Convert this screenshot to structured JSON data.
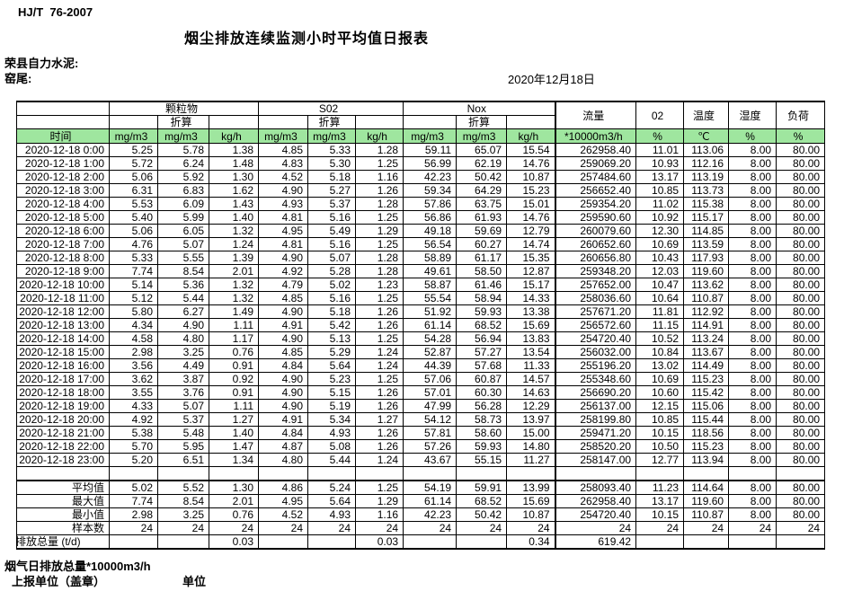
{
  "meta": {
    "standard": "HJ/T  76-2007",
    "title": "烟尘排放连续监测小时平均值日报表",
    "company": "荣县自力水泥:",
    "site": "窑尾:",
    "date": "2020年12月18日"
  },
  "table": {
    "time_header": "时间",
    "groups": [
      "颗粒物",
      "S02",
      "Nox"
    ],
    "converted_label": "折算",
    "tail_headers": [
      "流量",
      "02",
      "温度",
      "湿度",
      "负荷"
    ],
    "units": [
      "mg/m3",
      "mg/m3",
      "kg/h",
      "mg/m3",
      "mg/m3",
      "kg/h",
      "mg/m3",
      "mg/m3",
      "kg/h",
      "*10000m3/h",
      "%",
      "℃",
      "%",
      "%"
    ],
    "rows": [
      {
        "time": "2020-12-18 0:00",
        "values": [
          "5.25",
          "5.78",
          "1.38",
          "4.85",
          "5.33",
          "1.28",
          "59.11",
          "65.07",
          "15.54",
          "262958.40",
          "11.01",
          "113.06",
          "8.00",
          "80.00"
        ]
      },
      {
        "time": "2020-12-18 1:00",
        "values": [
          "5.72",
          "6.24",
          "1.48",
          "4.83",
          "5.30",
          "1.25",
          "56.99",
          "62.19",
          "14.76",
          "259069.20",
          "10.93",
          "112.16",
          "8.00",
          "80.00"
        ]
      },
      {
        "time": "2020-12-18 2:00",
        "values": [
          "5.06",
          "5.92",
          "1.30",
          "4.52",
          "5.18",
          "1.16",
          "42.23",
          "50.42",
          "10.87",
          "257484.60",
          "13.17",
          "113.19",
          "8.00",
          "80.00"
        ]
      },
      {
        "time": "2020-12-18 3:00",
        "values": [
          "6.31",
          "6.83",
          "1.62",
          "4.90",
          "5.27",
          "1.26",
          "59.34",
          "64.29",
          "15.23",
          "256652.40",
          "10.85",
          "113.73",
          "8.00",
          "80.00"
        ]
      },
      {
        "time": "2020-12-18 4:00",
        "values": [
          "5.53",
          "6.09",
          "1.43",
          "4.93",
          "5.37",
          "1.28",
          "57.86",
          "63.75",
          "15.01",
          "259354.20",
          "11.02",
          "115.38",
          "8.00",
          "80.00"
        ]
      },
      {
        "time": "2020-12-18 5:00",
        "values": [
          "5.40",
          "5.99",
          "1.40",
          "4.81",
          "5.16",
          "1.25",
          "56.86",
          "61.93",
          "14.76",
          "259590.60",
          "10.92",
          "115.17",
          "8.00",
          "80.00"
        ]
      },
      {
        "time": "2020-12-18 6:00",
        "values": [
          "5.06",
          "6.05",
          "1.32",
          "4.95",
          "5.49",
          "1.29",
          "49.18",
          "59.69",
          "12.79",
          "260079.60",
          "12.30",
          "114.85",
          "8.00",
          "80.00"
        ]
      },
      {
        "time": "2020-12-18 7:00",
        "values": [
          "4.76",
          "5.07",
          "1.24",
          "4.81",
          "5.16",
          "1.25",
          "56.54",
          "60.27",
          "14.74",
          "260652.60",
          "10.69",
          "113.59",
          "8.00",
          "80.00"
        ]
      },
      {
        "time": "2020-12-18 8:00",
        "values": [
          "5.33",
          "5.55",
          "1.39",
          "4.90",
          "5.07",
          "1.28",
          "58.89",
          "61.17",
          "15.35",
          "260656.80",
          "10.43",
          "117.93",
          "8.00",
          "80.00"
        ]
      },
      {
        "time": "2020-12-18 9:00",
        "values": [
          "7.74",
          "8.54",
          "2.01",
          "4.92",
          "5.28",
          "1.28",
          "49.61",
          "58.50",
          "12.87",
          "259348.20",
          "12.03",
          "119.60",
          "8.00",
          "80.00"
        ]
      },
      {
        "time": "2020-12-18 10:00",
        "values": [
          "5.14",
          "5.36",
          "1.32",
          "4.79",
          "5.02",
          "1.23",
          "58.87",
          "61.46",
          "15.17",
          "257652.00",
          "10.47",
          "113.62",
          "8.00",
          "80.00"
        ]
      },
      {
        "time": "2020-12-18 11:00",
        "values": [
          "5.12",
          "5.44",
          "1.32",
          "4.85",
          "5.16",
          "1.25",
          "55.54",
          "58.94",
          "14.33",
          "258036.60",
          "10.64",
          "110.87",
          "8.00",
          "80.00"
        ]
      },
      {
        "time": "2020-12-18 12:00",
        "values": [
          "5.80",
          "6.27",
          "1.49",
          "4.90",
          "5.18",
          "1.26",
          "51.92",
          "59.93",
          "13.38",
          "257671.20",
          "11.81",
          "112.92",
          "8.00",
          "80.00"
        ]
      },
      {
        "time": "2020-12-18 13:00",
        "values": [
          "4.34",
          "4.90",
          "1.11",
          "4.91",
          "5.42",
          "1.26",
          "61.14",
          "68.52",
          "15.69",
          "256572.60",
          "11.15",
          "114.91",
          "8.00",
          "80.00"
        ]
      },
      {
        "time": "2020-12-18 14:00",
        "values": [
          "4.58",
          "4.80",
          "1.17",
          "4.90",
          "5.13",
          "1.25",
          "54.28",
          "56.94",
          "13.83",
          "254720.40",
          "10.52",
          "113.24",
          "8.00",
          "80.00"
        ]
      },
      {
        "time": "2020-12-18 15:00",
        "values": [
          "2.98",
          "3.25",
          "0.76",
          "4.85",
          "5.29",
          "1.24",
          "52.87",
          "57.27",
          "13.54",
          "256032.00",
          "10.84",
          "113.67",
          "8.00",
          "80.00"
        ]
      },
      {
        "time": "2020-12-18 16:00",
        "values": [
          "3.56",
          "4.49",
          "0.91",
          "4.84",
          "5.64",
          "1.24",
          "44.39",
          "57.68",
          "11.33",
          "255196.20",
          "13.02",
          "114.49",
          "8.00",
          "80.00"
        ]
      },
      {
        "time": "2020-12-18 17:00",
        "values": [
          "3.62",
          "3.87",
          "0.92",
          "4.90",
          "5.23",
          "1.25",
          "57.06",
          "60.87",
          "14.57",
          "255348.60",
          "10.69",
          "115.23",
          "8.00",
          "80.00"
        ]
      },
      {
        "time": "2020-12-18 18:00",
        "values": [
          "3.55",
          "3.76",
          "0.91",
          "4.90",
          "5.15",
          "1.26",
          "57.01",
          "60.30",
          "14.63",
          "256690.20",
          "10.60",
          "115.42",
          "8.00",
          "80.00"
        ]
      },
      {
        "time": "2020-12-18 19:00",
        "values": [
          "4.33",
          "5.07",
          "1.11",
          "4.90",
          "5.19",
          "1.26",
          "47.99",
          "56.28",
          "12.29",
          "256137.00",
          "12.15",
          "115.06",
          "8.00",
          "80.00"
        ]
      },
      {
        "time": "2020-12-18 20:00",
        "values": [
          "4.92",
          "5.37",
          "1.27",
          "4.91",
          "5.34",
          "1.27",
          "54.12",
          "58.73",
          "13.97",
          "258199.80",
          "10.85",
          "115.44",
          "8.00",
          "80.00"
        ]
      },
      {
        "time": "2020-12-18 21:00",
        "values": [
          "5.38",
          "5.48",
          "1.40",
          "4.84",
          "4.93",
          "1.26",
          "57.81",
          "58.60",
          "15.00",
          "259471.20",
          "10.15",
          "118.56",
          "8.00",
          "80.00"
        ]
      },
      {
        "time": "2020-12-18 22:00",
        "values": [
          "5.70",
          "5.95",
          "1.47",
          "4.87",
          "5.08",
          "1.26",
          "57.26",
          "59.93",
          "14.80",
          "258520.20",
          "10.50",
          "115.23",
          "8.00",
          "80.00"
        ]
      },
      {
        "time": "2020-12-18 23:00",
        "values": [
          "5.20",
          "6.51",
          "1.34",
          "4.80",
          "5.44",
          "1.24",
          "43.67",
          "55.15",
          "11.27",
          "258147.00",
          "12.77",
          "113.94",
          "8.00",
          "80.00"
        ]
      }
    ],
    "summary": [
      {
        "label": "平均值",
        "values": [
          "5.02",
          "5.52",
          "1.30",
          "4.86",
          "5.24",
          "1.25",
          "54.19",
          "59.91",
          "13.99",
          "258093.40",
          "11.23",
          "114.64",
          "8.00",
          "80.00"
        ]
      },
      {
        "label": "最大值",
        "values": [
          "7.74",
          "8.54",
          "2.01",
          "4.95",
          "5.64",
          "1.29",
          "61.14",
          "68.52",
          "15.69",
          "262958.40",
          "13.17",
          "119.60",
          "8.00",
          "80.00"
        ]
      },
      {
        "label": "最小值",
        "values": [
          "2.98",
          "3.25",
          "0.76",
          "4.52",
          "4.93",
          "1.16",
          "42.23",
          "50.42",
          "10.87",
          "254720.40",
          "10.15",
          "110.87",
          "8.00",
          "80.00"
        ]
      },
      {
        "label": "样本数",
        "values": [
          "24",
          "24",
          "24",
          "24",
          "24",
          "24",
          "24",
          "24",
          "24",
          "24",
          "24",
          "24",
          "24",
          "24"
        ]
      },
      {
        "label": "日排放总量 (t/d)",
        "values": [
          "",
          "",
          "0.03",
          "",
          "",
          "0.03",
          "",
          "",
          "0.34",
          "619.42",
          "",
          "",
          "",
          ""
        ]
      }
    ]
  },
  "footer": {
    "total_flow_note": "烟气日排放总量*10000m3/h",
    "report_unit_label": "上报单位（盖章）",
    "unit_label": "单位"
  },
  "colors": {
    "header_green": "#9FE69F",
    "border": "#000000"
  }
}
